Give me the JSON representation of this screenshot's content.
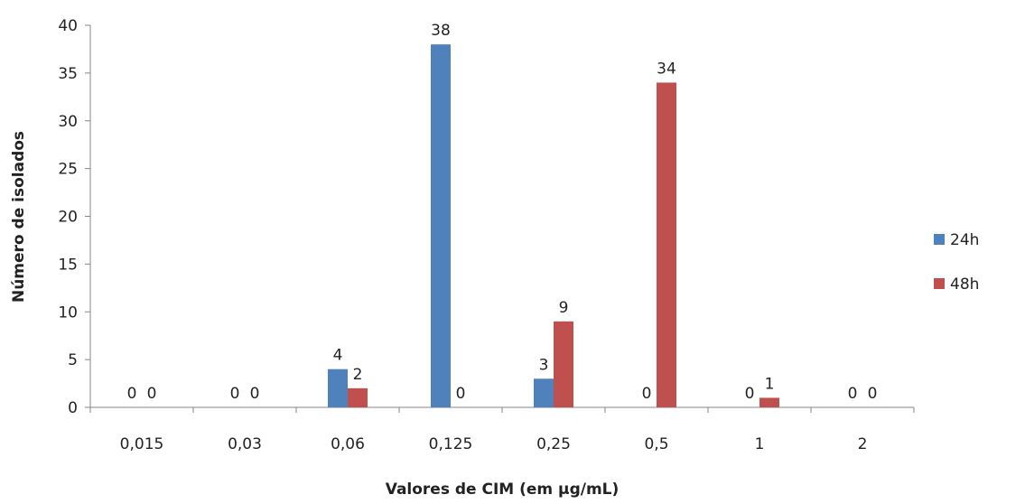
{
  "chart_data": {
    "type": "bar",
    "title": "",
    "xlabel": "Valores de CIM (em µg/mL)",
    "ylabel": "Número de isolados",
    "categories": [
      "0,015",
      "0,03",
      "0,06",
      "0,125",
      "0,25",
      "0,5",
      "1",
      "2"
    ],
    "series": [
      {
        "name": "24h",
        "values": [
          0,
          0,
          4,
          38,
          3,
          0,
          0,
          0
        ],
        "color": "#4f81bd"
      },
      {
        "name": "48h",
        "values": [
          0,
          0,
          2,
          0,
          9,
          34,
          1,
          0
        ],
        "color": "#c0504d"
      }
    ],
    "ylim": [
      0,
      40
    ],
    "yticks": [
      0,
      5,
      10,
      15,
      20,
      25,
      30,
      35,
      40
    ],
    "grid": false,
    "legend": "right",
    "data_labels": true
  }
}
